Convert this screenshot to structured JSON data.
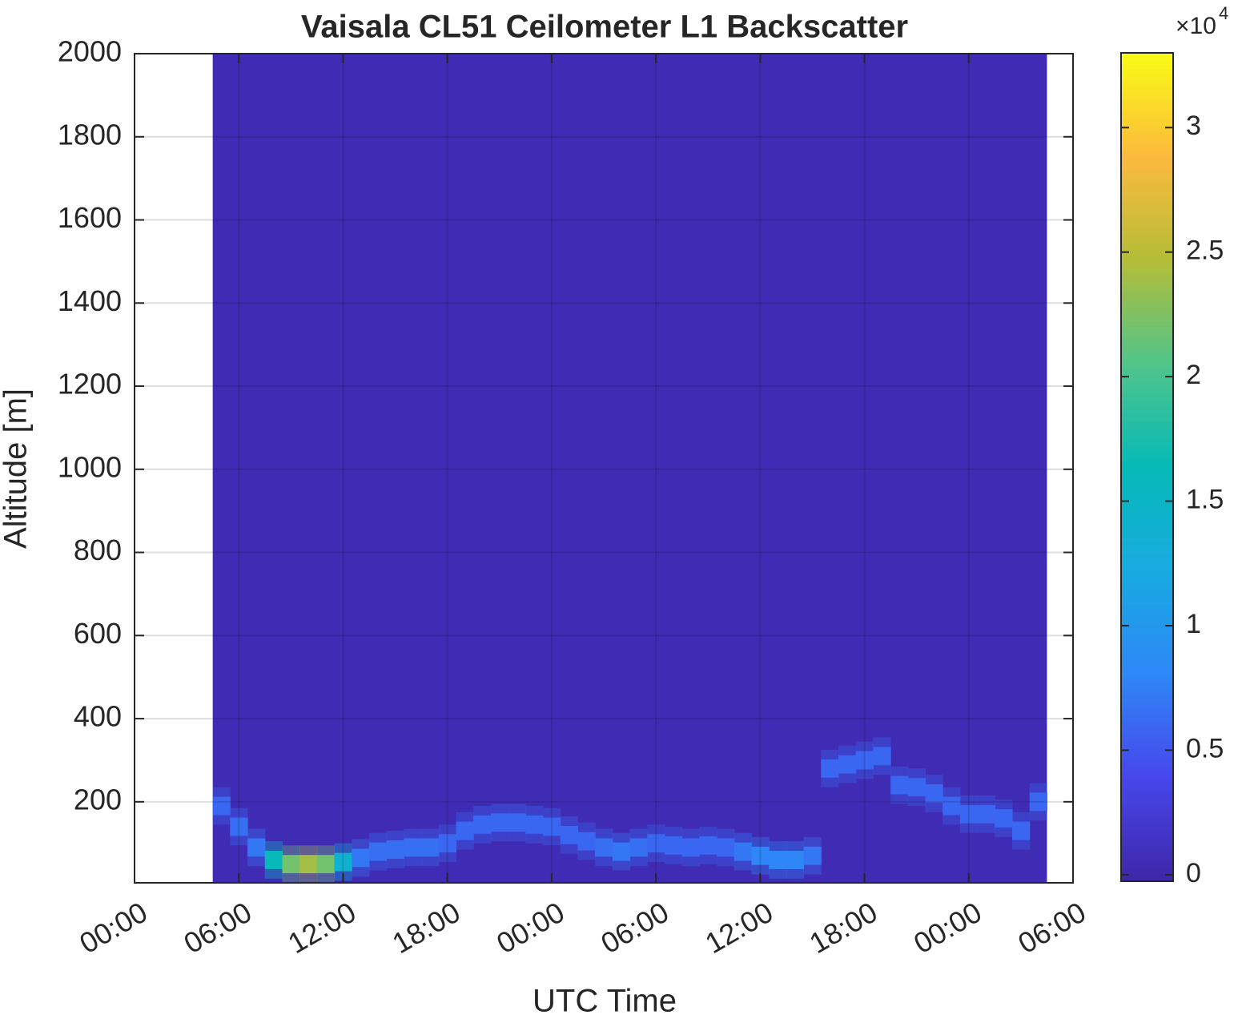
{
  "chart_data": {
    "type": "heatmap",
    "title": "Vaisala CL51 Ceilometer L1 Backscatter",
    "x_label": "UTC Time",
    "y_label": "Altitude [m]",
    "xlim": [
      0,
      54
    ],
    "xticks": [
      {
        "value": 0,
        "label": "00:00"
      },
      {
        "value": 6,
        "label": "06:00"
      },
      {
        "value": 12,
        "label": "12:00"
      },
      {
        "value": 18,
        "label": "18:00"
      },
      {
        "value": 24,
        "label": "00:00"
      },
      {
        "value": 30,
        "label": "06:00"
      },
      {
        "value": 36,
        "label": "12:00"
      },
      {
        "value": 42,
        "label": "18:00"
      },
      {
        "value": 48,
        "label": "00:00"
      },
      {
        "value": 54,
        "label": "06:00"
      }
    ],
    "ylim": [
      5,
      2000
    ],
    "yticks": [
      200,
      400,
      600,
      800,
      1000,
      1200,
      1400,
      1600,
      1800,
      2000
    ],
    "grid": true,
    "colormap": "parula",
    "clim": [
      -0.026,
      3.3
    ],
    "colorbar_ticks": [
      0,
      0.5,
      1,
      1.5,
      2,
      2.5,
      3
    ],
    "colorbar_multiplier": {
      "base": "×10",
      "exponent": "4"
    },
    "background_value": 0.05,
    "x": [
      5,
      6,
      7,
      8,
      9,
      10,
      11,
      12,
      13,
      14,
      15,
      16,
      17,
      18,
      19,
      20,
      21,
      22,
      23,
      24,
      25,
      26,
      27,
      28,
      29,
      30,
      31,
      32,
      33,
      34,
      35,
      36,
      37,
      38,
      39,
      40,
      41,
      42,
      43,
      44,
      45,
      46,
      47,
      48,
      49,
      50,
      51,
      52
    ],
    "layer_altitude": [
      190,
      140,
      90,
      60,
      50,
      50,
      50,
      55,
      65,
      80,
      85,
      90,
      90,
      100,
      130,
      145,
      150,
      150,
      145,
      140,
      120,
      105,
      90,
      80,
      90,
      100,
      95,
      90,
      95,
      90,
      80,
      70,
      60,
      60,
      70,
      280,
      290,
      300,
      310,
      240,
      235,
      220,
      190,
      170,
      170,
      160,
      130,
      200
    ],
    "intensity": [
      0.6,
      0.65,
      0.7,
      1.6,
      2.2,
      2.4,
      2.2,
      1.4,
      0.7,
      0.65,
      0.65,
      0.65,
      0.65,
      0.6,
      0.6,
      0.6,
      0.6,
      0.6,
      0.6,
      0.6,
      0.6,
      0.6,
      0.65,
      0.7,
      0.65,
      0.6,
      0.6,
      0.6,
      0.6,
      0.6,
      0.7,
      0.8,
      0.8,
      0.8,
      0.7,
      0.6,
      0.6,
      0.6,
      0.6,
      0.6,
      0.6,
      0.6,
      0.6,
      0.6,
      0.6,
      0.6,
      0.6,
      0.6
    ]
  }
}
